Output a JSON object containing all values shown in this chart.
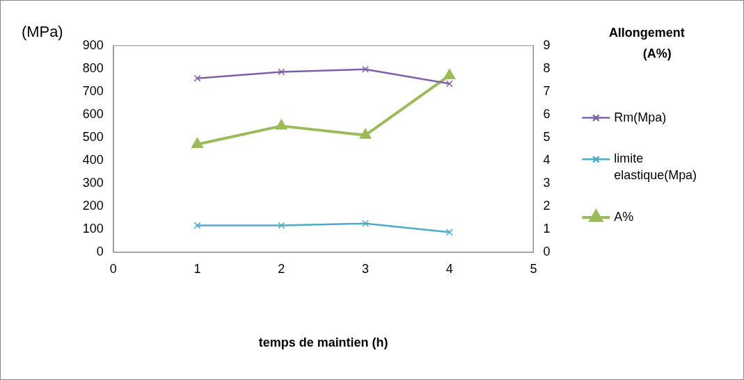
{
  "chart_data": {
    "type": "line",
    "ylabel": "(MPa)",
    "y2label": "Allongement (A%)",
    "xlabel": "temps de maintien (h)",
    "x": [
      1,
      2,
      3,
      4
    ],
    "xlim": [
      0,
      5
    ],
    "xticks": [
      0,
      1,
      2,
      3,
      4,
      5
    ],
    "ylim": [
      0,
      900
    ],
    "yticks": [
      0,
      100,
      200,
      300,
      400,
      500,
      600,
      700,
      800,
      900
    ],
    "y2lim": [
      0,
      9
    ],
    "y2ticks": [
      0,
      1,
      2,
      3,
      4,
      5,
      6,
      7,
      8,
      9
    ],
    "grid": false,
    "legend": "right",
    "series": [
      {
        "name": "Rm(Mpa)",
        "color": "#7f60a8",
        "marker": "cross",
        "values": [
          758,
          786,
          797,
          734
        ]
      },
      {
        "name": "limite elastique(Mpa)",
        "color": "#4bacc6",
        "marker": "cross",
        "values": [
          117,
          117,
          125,
          87
        ]
      },
      {
        "name": "A%",
        "color": "#9bbb59",
        "marker": "triangle",
        "axis": "y2",
        "values": [
          4.7,
          5.5,
          5.1,
          7.7
        ]
      }
    ]
  }
}
